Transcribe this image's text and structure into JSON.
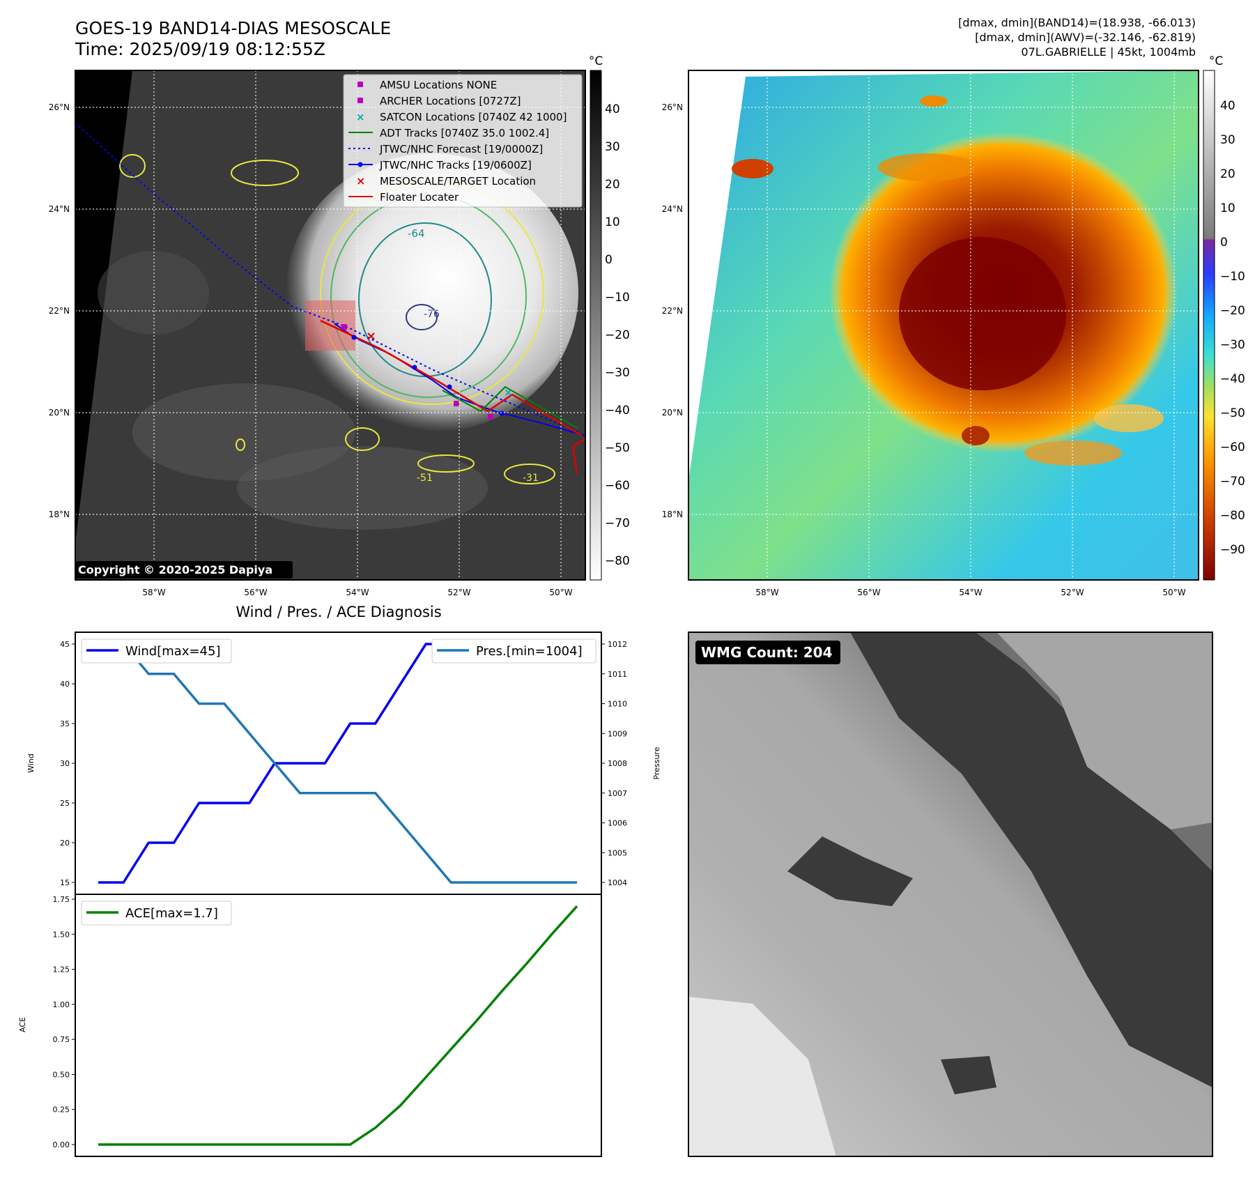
{
  "header": {
    "title_line1": "GOES-19 BAND14-DIAS MESOSCALE",
    "title_line2": "Time: 2025/09/19 08:12:55Z",
    "stats_line1": "[dmax, dmin](BAND14)=(18.938, -66.013)",
    "stats_line2": "[dmax, dmin](AWV)=(-32.146, -62.819)",
    "stats_line3": "07L.GABRIELLE | 45kt, 1004mb"
  },
  "maps": {
    "lat_labels": [
      "26°N",
      "24°N",
      "22°N",
      "20°N",
      "18°N"
    ],
    "lon_labels": [
      "58°W",
      "56°W",
      "54°W",
      "52°W",
      "50°W"
    ],
    "contour_labels": [
      "-64",
      "-76",
      "-51",
      "-31"
    ],
    "copyright": "Copyright © 2020-2025 Dapiya"
  },
  "colorbar_left": {
    "unit": "°C",
    "ticks": [
      "40",
      "30",
      "20",
      "10",
      "0",
      "−10",
      "−20",
      "−30",
      "−40",
      "−50",
      "−60",
      "−70",
      "−80"
    ]
  },
  "colorbar_right": {
    "unit": "°C",
    "ticks": [
      "40",
      "30",
      "20",
      "10",
      "0",
      "−10",
      "−20",
      "−30",
      "−40",
      "−50",
      "−60",
      "−70",
      "−80",
      "−90"
    ]
  },
  "legend": {
    "amsu": "AMSU Locations NONE",
    "archer": "ARCHER Locations [0727Z]",
    "satcon": "SATCON Locations [0740Z 42 1000]",
    "adt": "ADT Tracks [0740Z 35.0 1002.4]",
    "jtwc_forecast": "JTWC/NHC Forecast [19/0000Z]",
    "jtwc_tracks": "JTWC/NHC Tracks [19/0600Z]",
    "mesoscale": "MESOSCALE/TARGET Location",
    "floater": "Floater Locater"
  },
  "colors": {
    "wind": "#0000ee",
    "pressure": "#1f77b4",
    "ace": "#008000",
    "jtwc": "#0000ff",
    "adt": "#008000",
    "floater": "#dd0000",
    "archer": "#bb00bb",
    "satcon": "#00aaaa"
  },
  "wmg": {
    "label": "WMG Count: 204"
  },
  "chart_data": [
    {
      "type": "line",
      "title": "Wind / Pres. / ACE Diagnosis",
      "ylabel": "Wind",
      "ylabel_right": "Pressure",
      "ylim": [
        15,
        45
      ],
      "ylim_right": [
        1004,
        1012
      ],
      "yticks": [
        15,
        20,
        25,
        30,
        35,
        40,
        45
      ],
      "yticks_right": [
        1004,
        1005,
        1006,
        1007,
        1008,
        1009,
        1010,
        1011,
        1012
      ],
      "series": [
        {
          "name": "Wind[max=45]",
          "axis": "left",
          "x": [
            0,
            1,
            2,
            3,
            4,
            5,
            6,
            7,
            8,
            9,
            10,
            11,
            12,
            13,
            14,
            15,
            16,
            17,
            18,
            19
          ],
          "values": [
            15,
            15,
            20,
            20,
            25,
            25,
            25,
            30,
            30,
            30,
            35,
            35,
            40,
            45,
            45,
            45,
            45,
            45,
            45,
            45
          ]
        },
        {
          "name": "Pres.[min=1004]",
          "axis": "right",
          "x": [
            0,
            1,
            2,
            3,
            4,
            5,
            6,
            7,
            8,
            9,
            10,
            11,
            12,
            13,
            14,
            15,
            16,
            17,
            18,
            19
          ],
          "values": [
            1012,
            1012,
            1011,
            1011,
            1010,
            1010,
            1009,
            1008,
            1007,
            1007,
            1007,
            1007,
            1006,
            1005,
            1004,
            1004,
            1004,
            1004,
            1004,
            1004
          ]
        }
      ]
    },
    {
      "type": "line",
      "ylabel": "ACE",
      "ylim": [
        0,
        1.75
      ],
      "yticks": [
        0.0,
        0.25,
        0.5,
        0.75,
        1.0,
        1.25,
        1.5,
        1.75
      ],
      "series": [
        {
          "name": "ACE[max=1.7]",
          "x": [
            0,
            1,
            2,
            3,
            4,
            5,
            6,
            7,
            8,
            9,
            10,
            11,
            12,
            13,
            14,
            15,
            16,
            17,
            18,
            19
          ],
          "values": [
            0,
            0,
            0,
            0,
            0,
            0,
            0,
            0,
            0,
            0,
            0,
            0.12,
            0.28,
            0.48,
            0.68,
            0.88,
            1.09,
            1.29,
            1.5,
            1.7
          ]
        }
      ]
    }
  ]
}
